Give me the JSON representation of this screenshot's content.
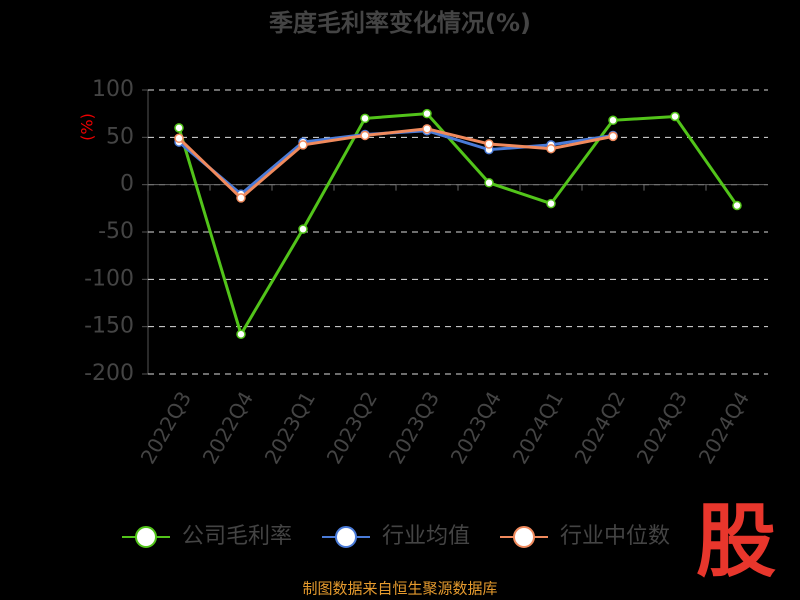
{
  "chart_data": {
    "type": "line",
    "title": "季度毛利率变化情况(%)",
    "y_label": "(%)",
    "categories": [
      "2022Q3",
      "2022Q4",
      "2023Q1",
      "2023Q2",
      "2023Q3",
      "2023Q4",
      "2024Q1",
      "2024Q2",
      "2024Q3",
      "2024Q4"
    ],
    "series": [
      {
        "name": "公司毛利率",
        "color": "#52c41a",
        "values": [
          60,
          -158,
          -47,
          70,
          75,
          2,
          -20,
          68,
          72,
          -22
        ]
      },
      {
        "name": "行业均值",
        "color": "#4a7bd8",
        "values": [
          45,
          -10,
          45,
          53,
          57,
          37,
          42,
          52,
          null,
          null
        ]
      },
      {
        "name": "行业中位数",
        "color": "#f08a5d",
        "values": [
          49,
          -14,
          42,
          52,
          59,
          43,
          38,
          51,
          null,
          null
        ]
      }
    ],
    "ylim": [
      -200,
      100
    ],
    "yticks": [
      -200,
      -150,
      -100,
      -50,
      0,
      50,
      100
    ],
    "grid": true,
    "source": "制图数据来自恒生聚源数据库",
    "logo": "股"
  }
}
